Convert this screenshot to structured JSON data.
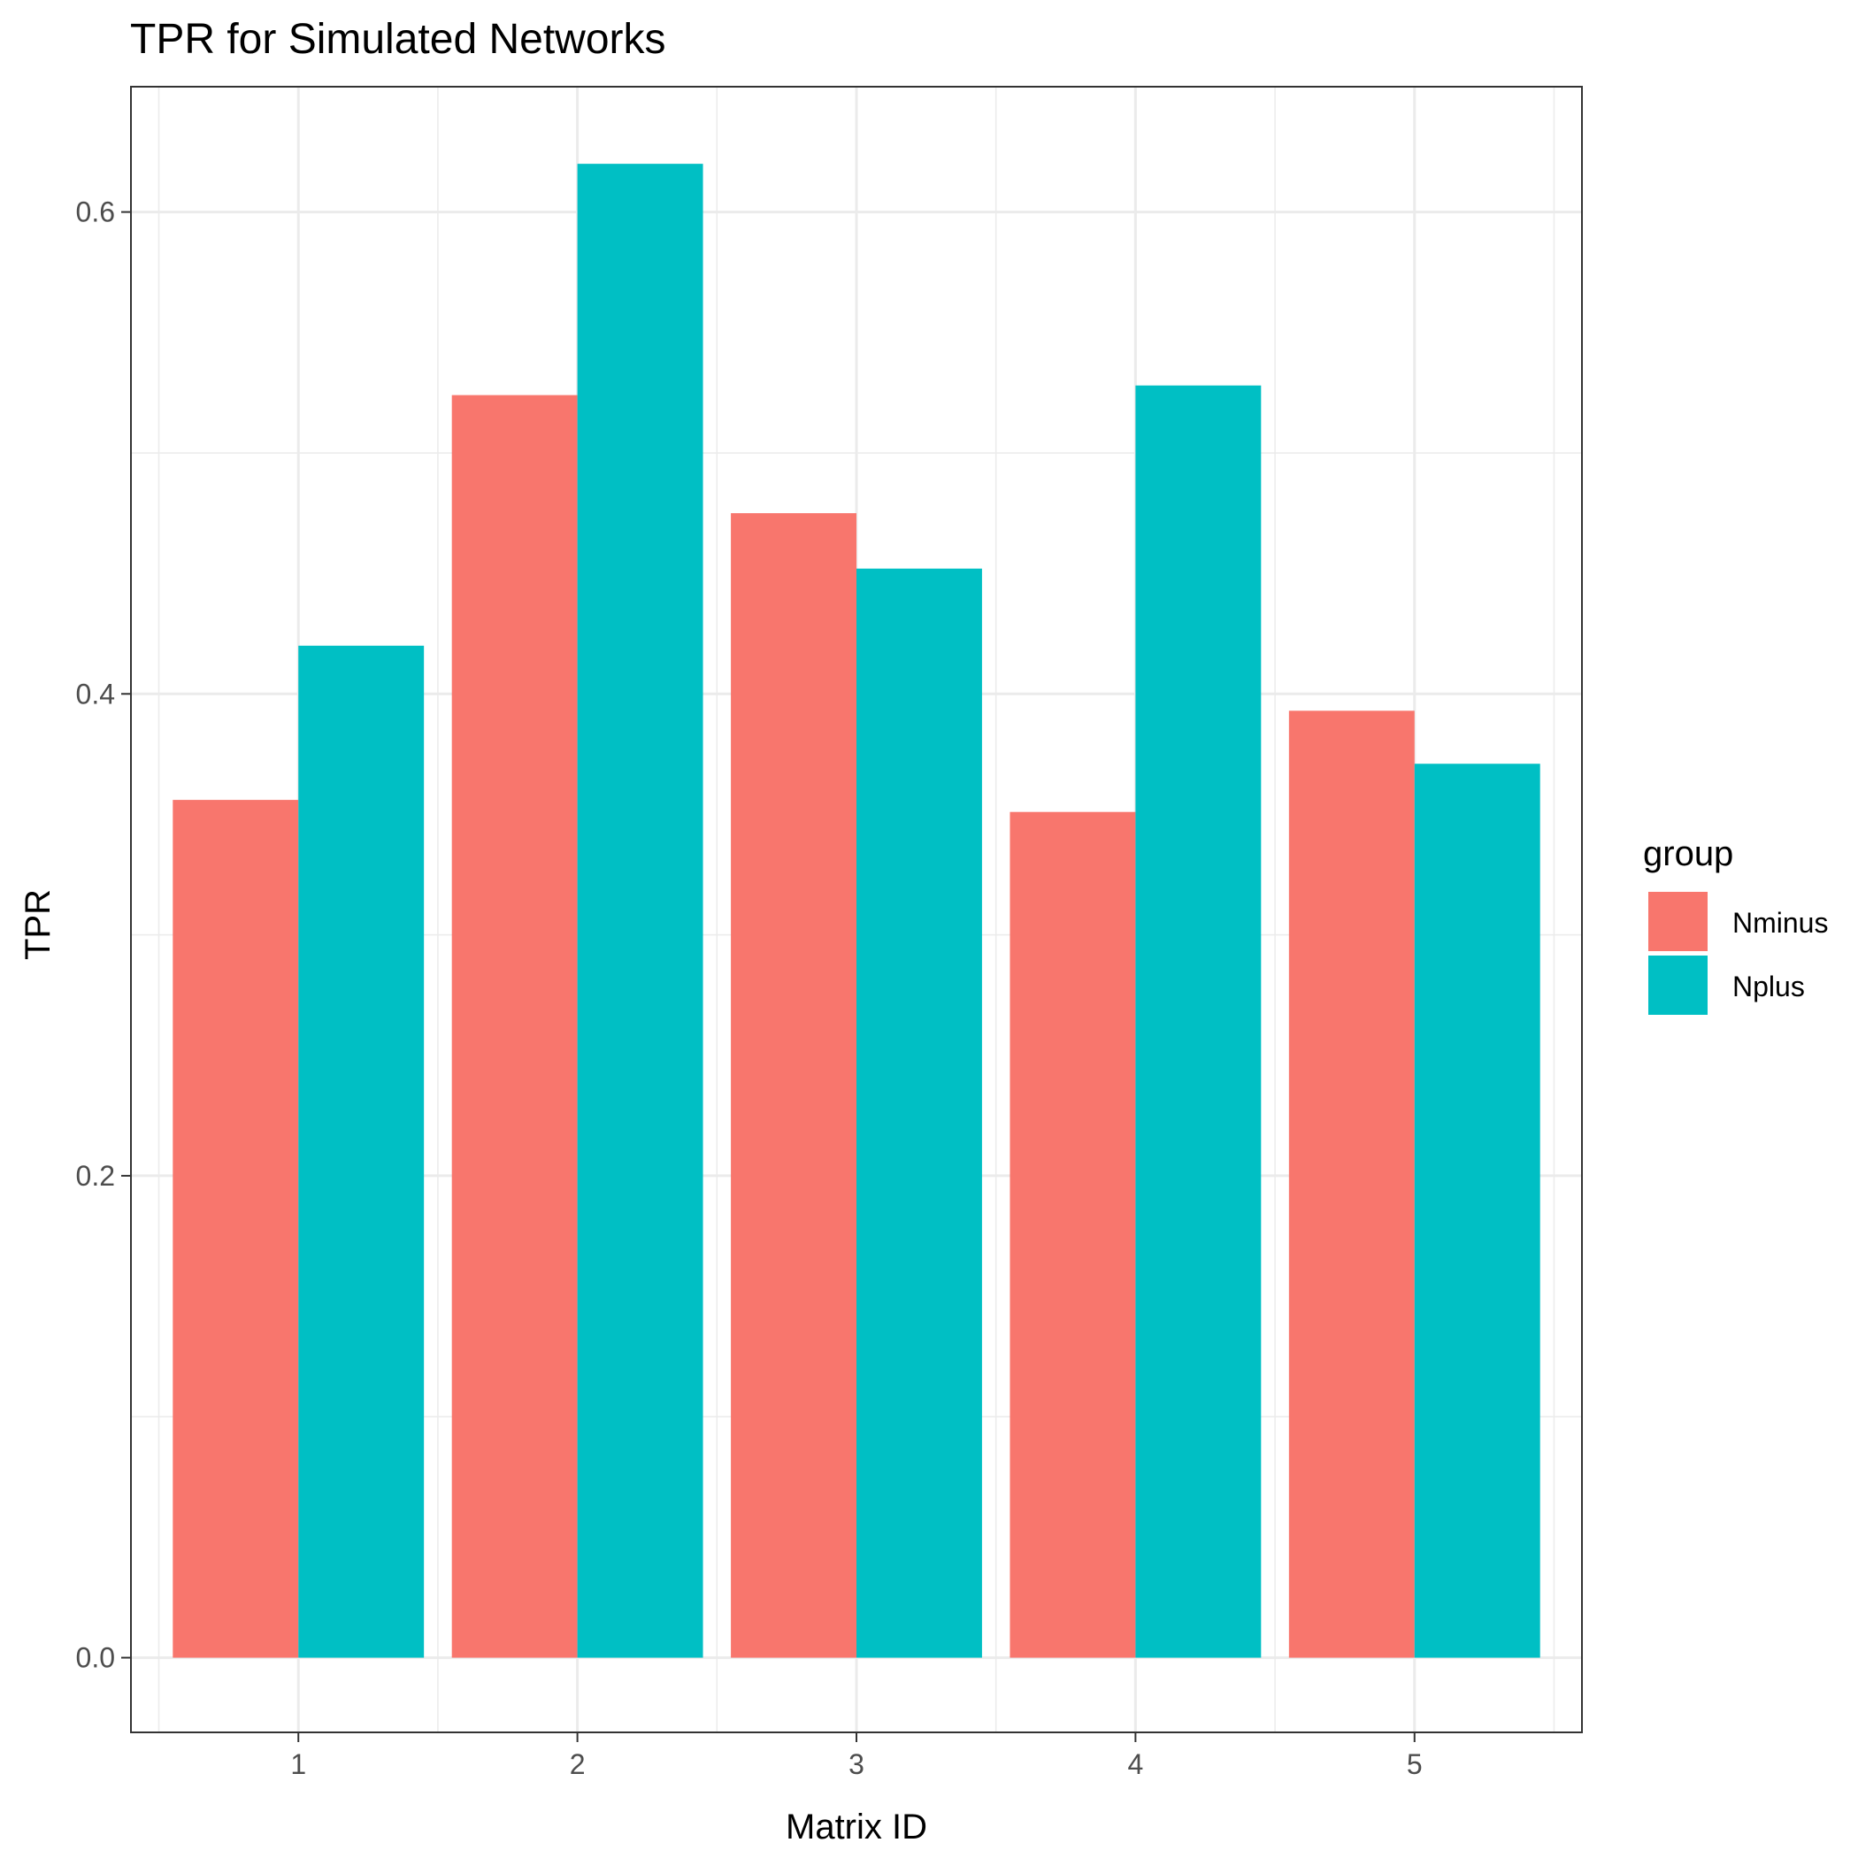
{
  "chart_data": {
    "type": "bar",
    "title": "TPR for Simulated Networks",
    "xlabel": "Matrix ID",
    "ylabel": "TPR",
    "categories": [
      "1",
      "2",
      "3",
      "4",
      "5"
    ],
    "series": [
      {
        "name": "Nminus",
        "color": "#F8766D",
        "values": [
          0.356,
          0.524,
          0.475,
          0.351,
          0.393
        ]
      },
      {
        "name": "Nplus",
        "color": "#00BFC4",
        "values": [
          0.42,
          0.62,
          0.452,
          0.528,
          0.371
        ]
      }
    ],
    "ylim": [
      -0.031,
      0.652
    ],
    "yticks": [
      0.0,
      0.2,
      0.4,
      0.6
    ],
    "ytick_labels": [
      "0.0",
      "0.2",
      "0.4",
      "0.6"
    ],
    "legend": {
      "title": "group",
      "position": "right"
    },
    "grid": true
  }
}
